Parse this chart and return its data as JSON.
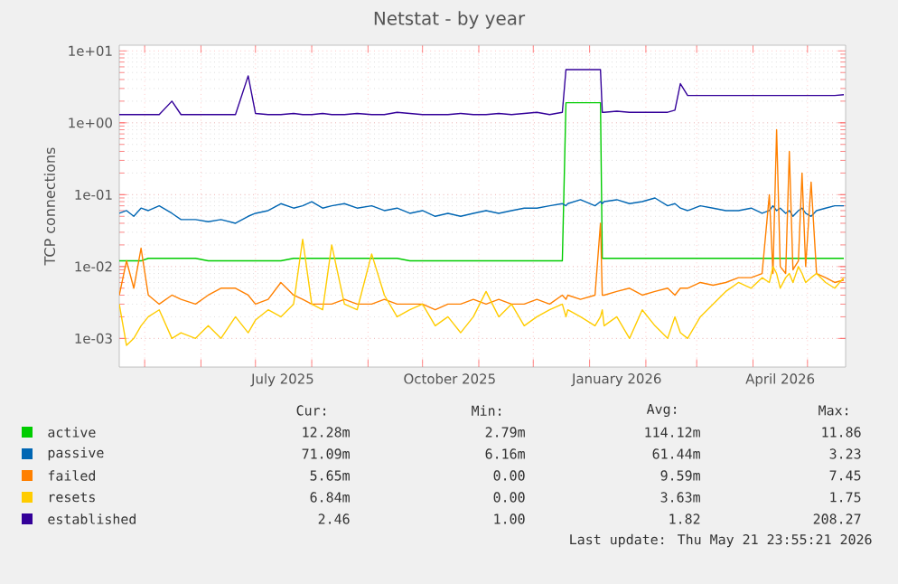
{
  "chart_data": {
    "type": "line",
    "title": "Netstat - by year",
    "ylabel": "TCP connections",
    "x": [
      "2025-04-17",
      "2025-04-21",
      "2025-04-25",
      "2025-04-29",
      "2025-05-03",
      "2025-05-09",
      "2025-05-16",
      "2025-05-21",
      "2025-05-29",
      "2025-06-05",
      "2025-06-12",
      "2025-06-20",
      "2025-06-27",
      "2025-07-01",
      "2025-07-08",
      "2025-07-15",
      "2025-07-22",
      "2025-07-27",
      "2025-08-01",
      "2025-08-07",
      "2025-08-12",
      "2025-08-19",
      "2025-08-26",
      "2025-09-03",
      "2025-09-10",
      "2025-09-17",
      "2025-09-24",
      "2025-10-01",
      "2025-10-08",
      "2025-10-15",
      "2025-10-22",
      "2025-10-29",
      "2025-11-05",
      "2025-11-12",
      "2025-11-19",
      "2025-11-26",
      "2025-12-03",
      "2025-12-10",
      "2025-12-17",
      "2025-12-19",
      "2025-12-20",
      "2025-12-27",
      "2026-01-04",
      "2026-01-07",
      "2026-01-08",
      "2026-01-09",
      "2026-01-16",
      "2026-01-23",
      "2026-01-30",
      "2026-02-06",
      "2026-02-13",
      "2026-02-17",
      "2026-02-20",
      "2026-02-24",
      "2026-03-03",
      "2026-03-10",
      "2026-03-17",
      "2026-03-24",
      "2026-03-31",
      "2026-04-06",
      "2026-04-10",
      "2026-04-12",
      "2026-04-14",
      "2026-04-16",
      "2026-04-19",
      "2026-04-21",
      "2026-04-23",
      "2026-04-26",
      "2026-04-28",
      "2026-04-30",
      "2026-05-03",
      "2026-05-06",
      "2026-05-11",
      "2026-05-16",
      "2026-05-21"
    ],
    "series": [
      {
        "name": "active",
        "color": "#00cc00",
        "values": [
          0.012,
          0.012,
          0.012,
          0.012,
          0.013,
          0.013,
          0.013,
          0.013,
          0.013,
          0.012,
          0.012,
          0.012,
          0.012,
          0.012,
          0.012,
          0.012,
          0.013,
          0.013,
          0.013,
          0.013,
          0.013,
          0.013,
          0.013,
          0.013,
          0.013,
          0.013,
          0.012,
          0.012,
          0.012,
          0.012,
          0.012,
          0.012,
          0.012,
          0.012,
          0.012,
          0.012,
          0.012,
          0.012,
          0.012,
          1.9,
          1.9,
          1.9,
          1.9,
          1.9,
          0.013,
          0.013,
          0.013,
          0.013,
          0.013,
          0.013,
          0.013,
          0.013,
          0.013,
          0.013,
          0.013,
          0.013,
          0.013,
          0.013,
          0.013,
          0.013,
          0.013,
          0.013,
          0.013,
          0.013,
          0.013,
          0.013,
          0.013,
          0.013,
          0.013,
          0.013,
          0.013,
          0.013,
          0.013,
          0.013,
          0.013
        ]
      },
      {
        "name": "passive",
        "color": "#0066b3",
        "values": [
          0.055,
          0.06,
          0.05,
          0.065,
          0.06,
          0.07,
          0.055,
          0.045,
          0.045,
          0.042,
          0.045,
          0.04,
          0.05,
          0.055,
          0.06,
          0.075,
          0.065,
          0.07,
          0.08,
          0.065,
          0.07,
          0.075,
          0.065,
          0.07,
          0.06,
          0.065,
          0.055,
          0.06,
          0.05,
          0.055,
          0.05,
          0.055,
          0.06,
          0.055,
          0.06,
          0.065,
          0.065,
          0.07,
          0.075,
          0.07,
          0.075,
          0.085,
          0.07,
          0.08,
          0.075,
          0.08,
          0.085,
          0.075,
          0.08,
          0.09,
          0.07,
          0.075,
          0.065,
          0.06,
          0.07,
          0.065,
          0.06,
          0.06,
          0.065,
          0.055,
          0.06,
          0.07,
          0.06,
          0.065,
          0.055,
          0.06,
          0.05,
          0.06,
          0.065,
          0.055,
          0.05,
          0.06,
          0.065,
          0.07,
          0.07
        ]
      },
      {
        "name": "failed",
        "color": "#ff8000",
        "values": [
          0.004,
          0.012,
          0.005,
          0.018,
          0.004,
          0.003,
          0.004,
          0.0035,
          0.003,
          0.004,
          0.005,
          0.005,
          0.004,
          0.003,
          0.0035,
          0.006,
          0.004,
          0.0035,
          0.003,
          0.003,
          0.003,
          0.0035,
          0.003,
          0.003,
          0.0035,
          0.003,
          0.003,
          0.003,
          0.0025,
          0.003,
          0.003,
          0.0035,
          0.003,
          0.0035,
          0.003,
          0.003,
          0.0035,
          0.003,
          0.004,
          0.0035,
          0.004,
          0.0035,
          0.004,
          0.04,
          0.004,
          0.004,
          0.0045,
          0.005,
          0.004,
          0.0045,
          0.005,
          0.004,
          0.005,
          0.005,
          0.006,
          0.0055,
          0.006,
          0.007,
          0.007,
          0.008,
          0.1,
          0.008,
          0.8,
          0.01,
          0.008,
          0.4,
          0.009,
          0.012,
          0.2,
          0.01,
          0.15,
          0.008,
          0.007,
          0.006,
          0.0065
        ]
      },
      {
        "name": "resets",
        "color": "#ffcc00",
        "values": [
          0.003,
          0.0008,
          0.001,
          0.0015,
          0.002,
          0.0025,
          0.001,
          0.0012,
          0.001,
          0.0015,
          0.001,
          0.002,
          0.0012,
          0.0018,
          0.0025,
          0.002,
          0.003,
          0.024,
          0.003,
          0.0025,
          0.02,
          0.003,
          0.0025,
          0.015,
          0.004,
          0.002,
          0.0025,
          0.003,
          0.0015,
          0.002,
          0.0012,
          0.002,
          0.0045,
          0.002,
          0.003,
          0.0015,
          0.002,
          0.0025,
          0.003,
          0.002,
          0.0025,
          0.002,
          0.0015,
          0.002,
          0.0025,
          0.0015,
          0.002,
          0.001,
          0.0025,
          0.0015,
          0.001,
          0.002,
          0.0012,
          0.001,
          0.002,
          0.003,
          0.0045,
          0.006,
          0.005,
          0.007,
          0.006,
          0.01,
          0.008,
          0.005,
          0.007,
          0.008,
          0.006,
          0.01,
          0.008,
          0.006,
          0.007,
          0.008,
          0.006,
          0.005,
          0.007
        ]
      },
      {
        "name": "established",
        "color": "#330099",
        "values": [
          1.3,
          1.3,
          1.3,
          1.3,
          1.3,
          1.3,
          2.0,
          1.3,
          1.3,
          1.3,
          1.3,
          1.3,
          4.5,
          1.35,
          1.3,
          1.3,
          1.35,
          1.3,
          1.3,
          1.35,
          1.3,
          1.3,
          1.35,
          1.3,
          1.3,
          1.4,
          1.35,
          1.3,
          1.3,
          1.3,
          1.35,
          1.3,
          1.3,
          1.35,
          1.3,
          1.35,
          1.4,
          1.3,
          1.4,
          5.5,
          5.5,
          5.5,
          5.5,
          5.5,
          1.4,
          1.4,
          1.45,
          1.4,
          1.4,
          1.4,
          1.4,
          1.5,
          3.5,
          2.4,
          2.4,
          2.4,
          2.4,
          2.4,
          2.4,
          2.4,
          2.4,
          2.4,
          2.4,
          2.4,
          2.4,
          2.4,
          2.4,
          2.4,
          2.4,
          2.4,
          2.4,
          2.4,
          2.4,
          2.4,
          2.46
        ]
      }
    ],
    "xlim": [
      "2025-04-17",
      "2026-05-22"
    ],
    "xticks": [
      {
        "value": "2025-05-01",
        "label": null
      },
      {
        "value": "2025-06-01",
        "label": null
      },
      {
        "value": "2025-07-01",
        "label": null
      },
      {
        "value": "2025-07-16",
        "label": "July 2025"
      },
      {
        "value": "2025-08-01",
        "label": null
      },
      {
        "value": "2025-09-01",
        "label": null
      },
      {
        "value": "2025-10-01",
        "label": null
      },
      {
        "value": "2025-10-16",
        "label": "October 2025"
      },
      {
        "value": "2025-11-01",
        "label": null
      },
      {
        "value": "2025-12-01",
        "label": null
      },
      {
        "value": "2026-01-01",
        "label": null
      },
      {
        "value": "2026-01-16",
        "label": "January 2026"
      },
      {
        "value": "2026-02-01",
        "label": null
      },
      {
        "value": "2026-03-01",
        "label": null
      },
      {
        "value": "2026-04-01",
        "label": null
      },
      {
        "value": "2026-04-16",
        "label": "April 2026"
      },
      {
        "value": "2026-05-01",
        "label": null
      }
    ],
    "ylim": [
      0.0004,
      12
    ],
    "yticks": [
      {
        "value": 0.001,
        "label": "1e-03"
      },
      {
        "value": 0.01,
        "label": "1e-02"
      },
      {
        "value": 0.1,
        "label": "1e-01"
      },
      {
        "value": 1,
        "label": "1e+00"
      },
      {
        "value": 10,
        "label": "1e+01"
      }
    ],
    "log": "y",
    "grid": true,
    "legend": "bottom",
    "marker": "none",
    "line_style": "solid",
    "annotations": [
      "Cur:",
      "Min:",
      "Avg:",
      "Max:",
      "12.28m",
      "2.79m",
      "114.12m",
      "11.86",
      "71.09m",
      "6.16m",
      "61.44m",
      "3.23",
      "5.65m",
      "0.00",
      "9.59m",
      "7.45",
      "6.84m",
      "0.00",
      "3.63m",
      "1.75",
      "2.46",
      "1.00",
      "1.82",
      "208.27",
      "Last update: Thu May 21 23:55:21 2026"
    ]
  }
}
